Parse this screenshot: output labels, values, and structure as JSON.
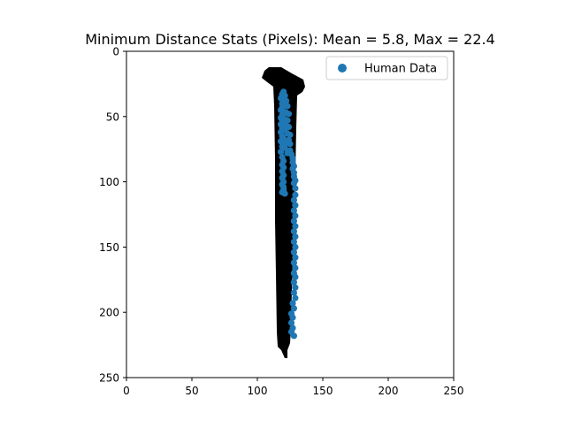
{
  "chart_data": {
    "type": "scatter",
    "title": "Minimum Distance Stats (Pixels): Mean = 5.8, Max = 22.4",
    "xlabel": "",
    "ylabel": "",
    "xlim": [
      0,
      250
    ],
    "ylim": [
      250,
      0
    ],
    "y_inverted": true,
    "grid": false,
    "xticks": [
      0,
      50,
      100,
      150,
      200,
      250
    ],
    "yticks": [
      0,
      50,
      100,
      150,
      200,
      250
    ],
    "legend": {
      "position": "top-right",
      "entries": [
        "Human Data"
      ]
    },
    "background_image": {
      "description": "black binary mask image of a long, nearly vertical stroke",
      "color": "#000000"
    },
    "series": [
      {
        "name": "Human Data",
        "color": "#1f77b4",
        "points": [
          [
            120,
            31
          ],
          [
            119,
            33
          ],
          [
            121,
            34
          ],
          [
            118,
            36
          ],
          [
            120,
            37
          ],
          [
            122,
            38
          ],
          [
            119,
            40
          ],
          [
            121,
            41
          ],
          [
            123,
            42
          ],
          [
            119,
            43
          ],
          [
            118,
            45
          ],
          [
            120,
            46
          ],
          [
            122,
            47
          ],
          [
            124,
            48
          ],
          [
            119,
            49
          ],
          [
            118,
            51
          ],
          [
            121,
            52
          ],
          [
            123,
            53
          ],
          [
            119,
            54
          ],
          [
            118,
            56
          ],
          [
            122,
            57
          ],
          [
            124,
            58
          ],
          [
            119,
            59
          ],
          [
            121,
            60
          ],
          [
            118,
            62
          ],
          [
            123,
            63
          ],
          [
            125,
            64
          ],
          [
            119,
            65
          ],
          [
            120,
            67
          ],
          [
            124,
            68
          ],
          [
            118,
            69
          ],
          [
            122,
            70
          ],
          [
            125,
            71
          ],
          [
            119,
            73
          ],
          [
            121,
            74
          ],
          [
            125,
            76
          ],
          [
            118,
            77
          ],
          [
            123,
            78
          ],
          [
            126,
            79
          ],
          [
            119,
            81
          ],
          [
            127,
            82
          ],
          [
            120,
            84
          ],
          [
            127,
            85
          ],
          [
            119,
            87
          ],
          [
            128,
            88
          ],
          [
            120,
            89
          ],
          [
            127,
            90
          ],
          [
            119,
            92
          ],
          [
            128,
            93
          ],
          [
            120,
            95
          ],
          [
            128,
            96
          ],
          [
            119,
            97
          ],
          [
            129,
            99
          ],
          [
            120,
            100
          ],
          [
            128,
            101
          ],
          [
            119,
            102
          ],
          [
            120,
            104
          ],
          [
            129,
            105
          ],
          [
            120,
            106
          ],
          [
            119,
            108
          ],
          [
            121,
            109
          ],
          [
            129,
            110
          ],
          [
            128,
            114
          ],
          [
            129,
            118
          ],
          [
            128,
            122
          ],
          [
            129,
            126
          ],
          [
            128,
            130
          ],
          [
            129,
            134
          ],
          [
            128,
            138
          ],
          [
            129,
            142
          ],
          [
            128,
            146
          ],
          [
            129,
            150
          ],
          [
            128,
            154
          ],
          [
            129,
            158
          ],
          [
            128,
            162
          ],
          [
            129,
            166
          ],
          [
            128,
            170
          ],
          [
            129,
            173
          ],
          [
            128,
            177
          ],
          [
            129,
            181
          ],
          [
            128,
            185
          ],
          [
            129,
            189
          ],
          [
            127,
            193
          ],
          [
            128,
            197
          ],
          [
            126,
            201
          ],
          [
            127,
            204
          ],
          [
            126,
            208
          ],
          [
            127,
            212
          ],
          [
            126,
            215
          ],
          [
            128,
            218
          ]
        ]
      }
    ]
  }
}
